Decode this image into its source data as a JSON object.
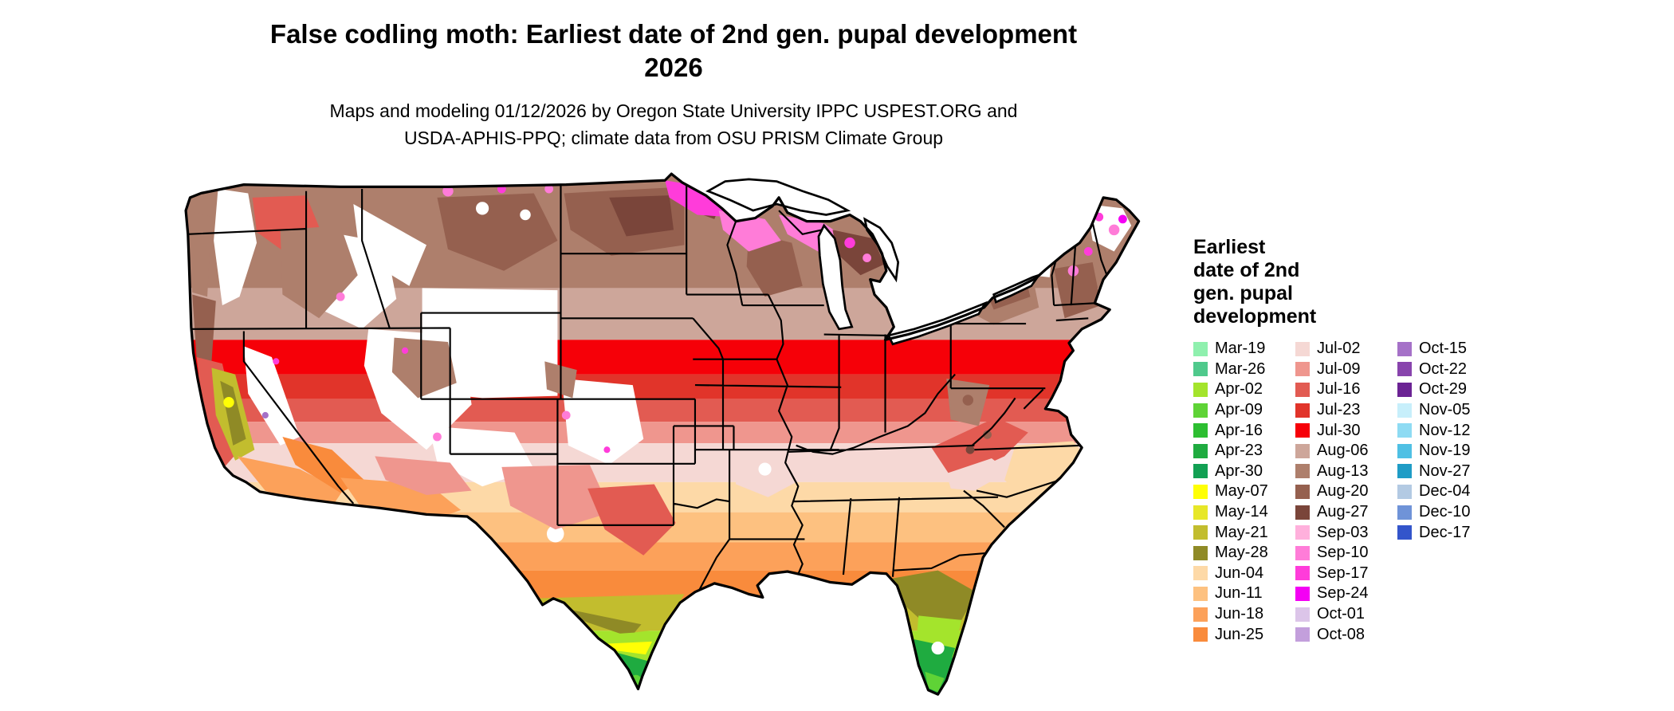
{
  "header": {
    "title_line1": "False codling moth: Earliest date of 2nd gen. pupal development",
    "title_line2": "2026",
    "subtitle_line1": "Maps and modeling 01/12/2026 by Oregon State University IPPC USPEST.ORG and",
    "subtitle_line2": "USDA-APHIS-PPQ; climate data from OSU PRISM Climate Group"
  },
  "map": {
    "region": "Continental United States",
    "no_data_color": "#ffffff",
    "border_color": "#000000"
  },
  "legend": {
    "title_lines": [
      "Earliest",
      "date of 2nd",
      "gen. pupal",
      "development"
    ],
    "columns": [
      {
        "entries": [
          {
            "label": "Mar-19",
            "color": "#8ff0ae"
          },
          {
            "label": "Mar-26",
            "color": "#4fc98c"
          },
          {
            "label": "Apr-02",
            "color": "#a4e42c"
          },
          {
            "label": "Apr-09",
            "color": "#5fd336"
          },
          {
            "label": "Apr-16",
            "color": "#2dbe31"
          },
          {
            "label": "Apr-23",
            "color": "#1fab40"
          },
          {
            "label": "Apr-30",
            "color": "#12a053"
          },
          {
            "label": "May-07",
            "color": "#ffff05"
          },
          {
            "label": "May-14",
            "color": "#e7e728"
          },
          {
            "label": "May-21",
            "color": "#c2bd2e"
          },
          {
            "label": "May-28",
            "color": "#8f8a26"
          },
          {
            "label": "Jun-04",
            "color": "#fdd9a7"
          },
          {
            "label": "Jun-11",
            "color": "#fdc180"
          },
          {
            "label": "Jun-18",
            "color": "#fca15a"
          },
          {
            "label": "Jun-25",
            "color": "#f98b3c"
          }
        ]
      },
      {
        "entries": [
          {
            "label": "Jul-02",
            "color": "#f5d8d4"
          },
          {
            "label": "Jul-09",
            "color": "#ef968e"
          },
          {
            "label": "Jul-16",
            "color": "#e25b52"
          },
          {
            "label": "Jul-23",
            "color": "#e1342a"
          },
          {
            "label": "Jul-30",
            "color": "#f60008"
          },
          {
            "label": "Aug-06",
            "color": "#cda69a"
          },
          {
            "label": "Aug-13",
            "color": "#ae7f6c"
          },
          {
            "label": "Aug-20",
            "color": "#95604f"
          },
          {
            "label": "Aug-27",
            "color": "#7a453a"
          },
          {
            "label": "Sep-03",
            "color": "#ffb0dc"
          },
          {
            "label": "Sep-10",
            "color": "#ff7cd8"
          },
          {
            "label": "Sep-17",
            "color": "#ff3cda"
          },
          {
            "label": "Sep-24",
            "color": "#f400f4"
          },
          {
            "label": "Oct-01",
            "color": "#dcc5e9"
          },
          {
            "label": "Oct-08",
            "color": "#c39fdc"
          }
        ]
      },
      {
        "entries": [
          {
            "label": "Oct-15",
            "color": "#a571c8"
          },
          {
            "label": "Oct-22",
            "color": "#8844ad"
          },
          {
            "label": "Oct-29",
            "color": "#6b2394"
          },
          {
            "label": "Nov-05",
            "color": "#c7effb"
          },
          {
            "label": "Nov-12",
            "color": "#8edbf3"
          },
          {
            "label": "Nov-19",
            "color": "#4fc0e4"
          },
          {
            "label": "Nov-27",
            "color": "#1f9cc6"
          },
          {
            "label": "Dec-04",
            "color": "#b3cae3"
          },
          {
            "label": "Dec-10",
            "color": "#6f93d8"
          },
          {
            "label": "Dec-17",
            "color": "#3355cb"
          }
        ]
      }
    ]
  }
}
